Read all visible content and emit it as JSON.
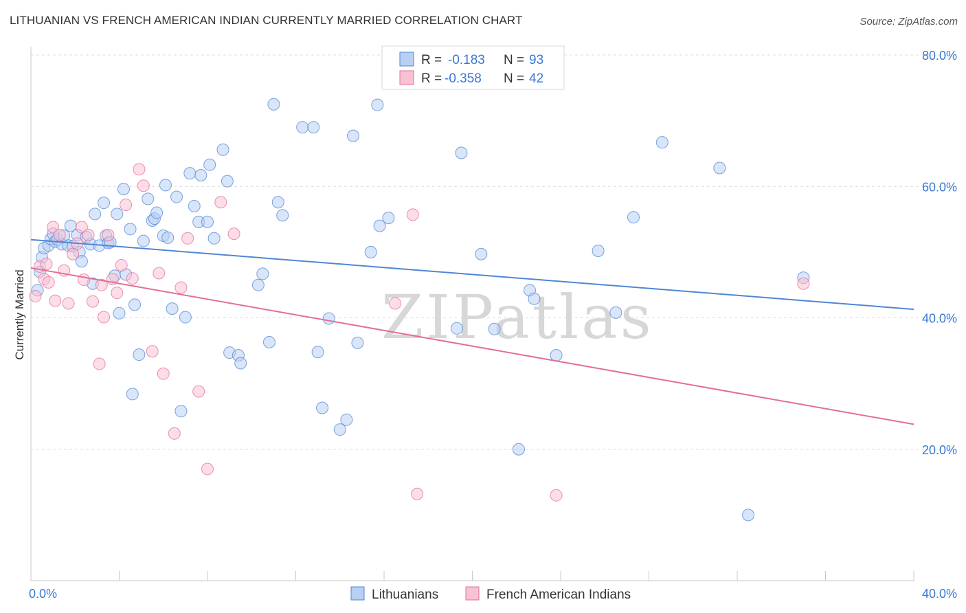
{
  "chart_data": {
    "type": "scatter",
    "title": "LITHUANIAN VS FRENCH AMERICAN INDIAN CURRENTLY MARRIED CORRELATION CHART",
    "source": "Source: ZipAtlas.com",
    "xlabel": "",
    "ylabel": "Currently Married",
    "xlim": [
      0,
      40
    ],
    "ylim": [
      0,
      80
    ],
    "x_tick_labels": [
      "0.0%",
      "40.0%"
    ],
    "x_tick_values": [
      0,
      40
    ],
    "y_tick_labels": [
      "20.0%",
      "40.0%",
      "60.0%",
      "80.0%"
    ],
    "y_tick_values": [
      20,
      40,
      60,
      80
    ],
    "grid": true,
    "watermark": "ZIPatlas",
    "legend_position": "top-center",
    "legend": [
      {
        "name": "Lithuanians",
        "r_label": "R =",
        "r": "-0.183",
        "n_label": "N =",
        "n": "93",
        "color": "#4f86d6",
        "fill": "#b9d0f2"
      },
      {
        "name": "French American Indians",
        "r_label": "R =",
        "r": "-0.358",
        "n_label": "N =",
        "n": "42",
        "color": "#e46e96",
        "fill": "#f7c3d3"
      }
    ],
    "series": [
      {
        "name": "Lithuanians",
        "color": "#4f86d6",
        "trend": {
          "x": [
            0,
            40
          ],
          "y": [
            51.9,
            41.3
          ]
        },
        "points": [
          [
            0.3,
            44.2
          ],
          [
            0.4,
            47.0
          ],
          [
            0.5,
            49.2
          ],
          [
            0.6,
            50.6
          ],
          [
            0.8,
            51.0
          ],
          [
            0.9,
            52.0
          ],
          [
            1.0,
            52.8
          ],
          [
            1.1,
            51.6
          ],
          [
            1.2,
            51.9
          ],
          [
            1.4,
            51.2
          ],
          [
            1.5,
            52.5
          ],
          [
            1.7,
            51.0
          ],
          [
            1.8,
            54.0
          ],
          [
            1.9,
            50.9
          ],
          [
            2.1,
            52.6
          ],
          [
            2.2,
            50.0
          ],
          [
            2.3,
            48.6
          ],
          [
            2.5,
            52.3
          ],
          [
            2.7,
            51.2
          ],
          [
            2.8,
            45.2
          ],
          [
            2.9,
            55.8
          ],
          [
            3.1,
            51.0
          ],
          [
            3.3,
            57.5
          ],
          [
            3.4,
            52.5
          ],
          [
            3.5,
            51.4
          ],
          [
            3.6,
            51.5
          ],
          [
            3.8,
            46.4
          ],
          [
            3.9,
            55.8
          ],
          [
            4.0,
            40.7
          ],
          [
            4.2,
            59.6
          ],
          [
            4.3,
            46.6
          ],
          [
            4.5,
            53.5
          ],
          [
            4.6,
            28.4
          ],
          [
            4.7,
            42.0
          ],
          [
            4.9,
            34.4
          ],
          [
            5.1,
            51.7
          ],
          [
            5.3,
            58.1
          ],
          [
            5.5,
            54.8
          ],
          [
            5.6,
            55.1
          ],
          [
            5.7,
            56.0
          ],
          [
            6.0,
            52.5
          ],
          [
            6.1,
            60.2
          ],
          [
            6.2,
            52.2
          ],
          [
            6.4,
            41.4
          ],
          [
            6.6,
            58.4
          ],
          [
            6.8,
            25.8
          ],
          [
            7.0,
            40.1
          ],
          [
            7.2,
            62.0
          ],
          [
            7.4,
            57.0
          ],
          [
            7.6,
            54.6
          ],
          [
            7.7,
            61.7
          ],
          [
            8.0,
            54.6
          ],
          [
            8.1,
            63.3
          ],
          [
            8.3,
            52.1
          ],
          [
            8.7,
            65.6
          ],
          [
            8.9,
            60.8
          ],
          [
            9.0,
            34.7
          ],
          [
            9.4,
            34.3
          ],
          [
            9.5,
            33.1
          ],
          [
            10.3,
            45.0
          ],
          [
            10.5,
            46.7
          ],
          [
            10.8,
            36.3
          ],
          [
            11.0,
            72.5
          ],
          [
            11.2,
            57.6
          ],
          [
            11.4,
            55.6
          ],
          [
            12.3,
            69.0
          ],
          [
            12.8,
            69.0
          ],
          [
            13.0,
            34.8
          ],
          [
            13.2,
            26.3
          ],
          [
            13.5,
            39.9
          ],
          [
            14.0,
            23.0
          ],
          [
            14.3,
            24.5
          ],
          [
            14.6,
            67.7
          ],
          [
            14.8,
            36.2
          ],
          [
            15.4,
            50.0
          ],
          [
            15.7,
            72.4
          ],
          [
            15.8,
            54.0
          ],
          [
            16.2,
            55.2
          ],
          [
            19.3,
            38.4
          ],
          [
            19.5,
            65.1
          ],
          [
            20.4,
            49.7
          ],
          [
            21.0,
            38.3
          ],
          [
            22.1,
            20.0
          ],
          [
            22.6,
            44.2
          ],
          [
            22.8,
            42.9
          ],
          [
            23.8,
            34.3
          ],
          [
            25.7,
            50.2
          ],
          [
            26.5,
            40.8
          ],
          [
            27.3,
            55.3
          ],
          [
            28.6,
            66.7
          ],
          [
            31.2,
            62.8
          ],
          [
            32.5,
            10.0
          ],
          [
            35.0,
            46.1
          ]
        ]
      },
      {
        "name": "French American Indians",
        "color": "#e46e96",
        "trend": {
          "x": [
            0,
            40
          ],
          "y": [
            47.6,
            23.8
          ]
        },
        "points": [
          [
            0.2,
            43.3
          ],
          [
            0.4,
            47.8
          ],
          [
            0.6,
            45.9
          ],
          [
            0.7,
            48.2
          ],
          [
            0.8,
            45.4
          ],
          [
            1.0,
            53.8
          ],
          [
            1.1,
            42.6
          ],
          [
            1.3,
            52.6
          ],
          [
            1.5,
            47.2
          ],
          [
            1.7,
            42.2
          ],
          [
            1.9,
            49.7
          ],
          [
            2.1,
            51.3
          ],
          [
            2.3,
            53.8
          ],
          [
            2.4,
            45.8
          ],
          [
            2.6,
            52.6
          ],
          [
            2.8,
            42.5
          ],
          [
            3.1,
            33.0
          ],
          [
            3.2,
            45.0
          ],
          [
            3.3,
            40.1
          ],
          [
            3.5,
            52.6
          ],
          [
            3.7,
            45.9
          ],
          [
            3.9,
            43.8
          ],
          [
            4.1,
            48.0
          ],
          [
            4.3,
            57.2
          ],
          [
            4.6,
            46.0
          ],
          [
            4.9,
            62.6
          ],
          [
            5.1,
            60.1
          ],
          [
            5.5,
            34.9
          ],
          [
            5.8,
            46.8
          ],
          [
            6.0,
            31.5
          ],
          [
            6.5,
            22.4
          ],
          [
            6.8,
            44.6
          ],
          [
            7.1,
            52.1
          ],
          [
            7.6,
            28.8
          ],
          [
            8.0,
            17.0
          ],
          [
            8.6,
            57.6
          ],
          [
            9.2,
            52.8
          ],
          [
            16.5,
            42.2
          ],
          [
            17.3,
            55.7
          ],
          [
            17.5,
            13.2
          ],
          [
            23.8,
            13.0
          ],
          [
            35.0,
            45.2
          ]
        ]
      }
    ]
  }
}
